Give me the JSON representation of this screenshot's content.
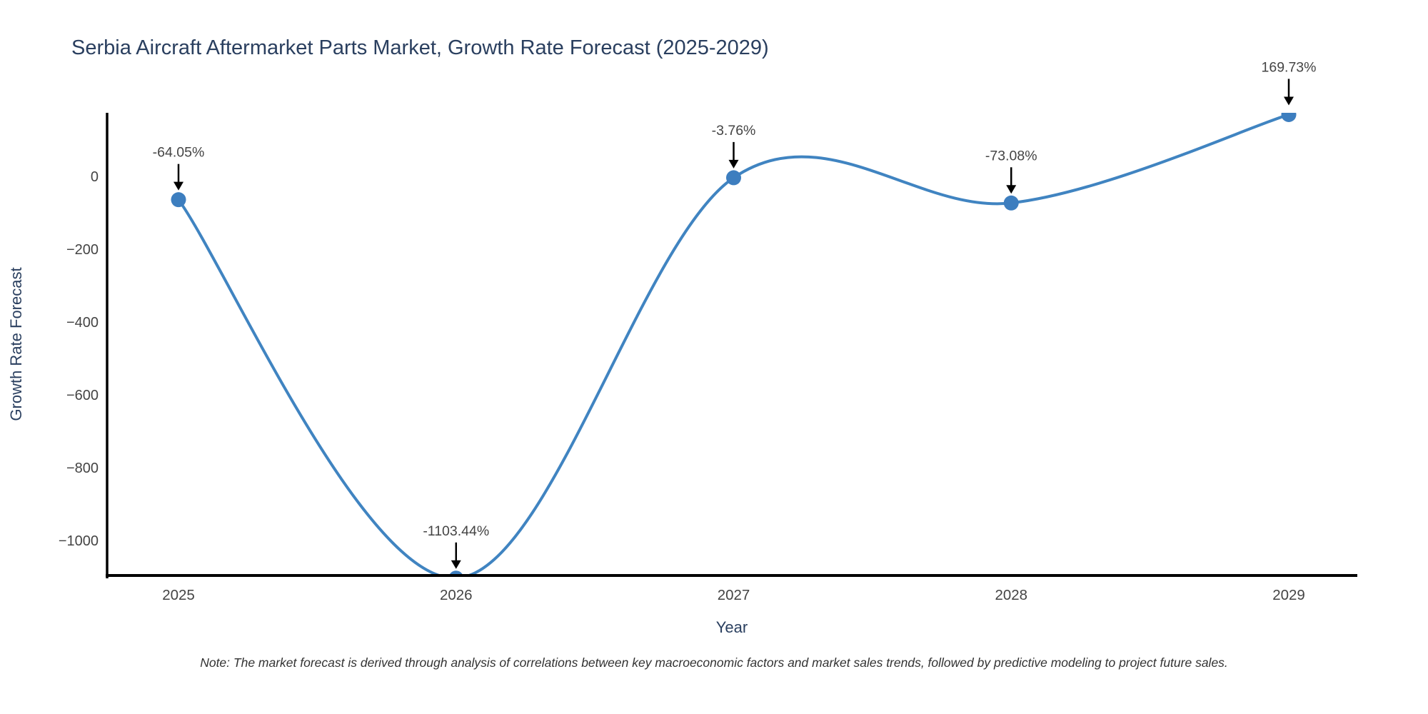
{
  "title": "Serbia Aircraft Aftermarket Parts Market, Growth Rate Forecast (2025-2029)",
  "note": "Note: The market forecast is derived through analysis of correlations between key macroeconomic factors and market sales trends, followed by predictive modeling to project future sales.",
  "chart_data": {
    "type": "line",
    "line_shape": "spline",
    "title": "Serbia Aircraft Aftermarket Parts Market, Growth Rate Forecast (2025-2029)",
    "xlabel": "Year",
    "ylabel": "Growth Rate Forecast",
    "x": [
      2025,
      2026,
      2027,
      2028,
      2029
    ],
    "y": [
      -64.05,
      -1103.44,
      -3.76,
      -73.08,
      169.73
    ],
    "point_labels": [
      "-64.05%",
      "-1103.44%",
      "-3.76%",
      "-73.08%",
      "169.73%"
    ],
    "x_tick_labels": [
      "2025",
      "2026",
      "2027",
      "2028",
      "2029"
    ],
    "y_ticks": [
      0,
      -200,
      -400,
      -600,
      -800,
      -1000
    ],
    "y_tick_labels": [
      "0",
      "−200",
      "−400",
      "−600",
      "−800",
      "−1000"
    ],
    "ylim": [
      -1096,
      175
    ],
    "grid": false,
    "legend": "none",
    "markers": true,
    "annotation_arrows": true,
    "colors": {
      "line": "#4084c1",
      "marker": "#3d7ebf",
      "axis": "#000000",
      "arrow": "#000000",
      "annotation_text": "#444444",
      "tick_text": "#444444",
      "title_text": "#2a3f5f",
      "axis_title_text": "#2a3f5f",
      "background": "#ffffff"
    }
  }
}
